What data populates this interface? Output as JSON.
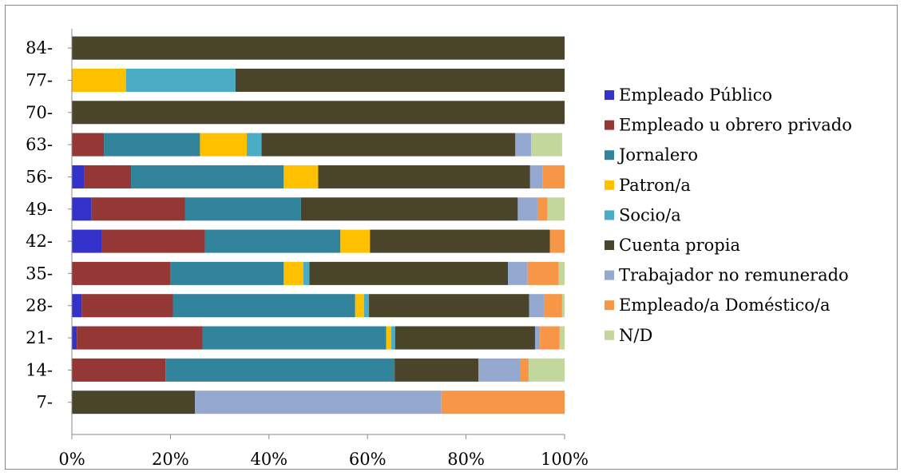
{
  "chart_data": {
    "type": "bar",
    "orientation": "horizontal",
    "stacked": "percent",
    "title": "",
    "xlabel": "",
    "ylabel": "",
    "xlim": [
      0,
      100
    ],
    "grid": false,
    "legend_position": "right",
    "x_ticks": [
      "0%",
      "20%",
      "40%",
      "60%",
      "80%",
      "100%"
    ],
    "categories": [
      "84-",
      "77-",
      "70-",
      "63-",
      "56-",
      "49-",
      "42-",
      "35-",
      "28-",
      "21-",
      "14-",
      "7-"
    ],
    "series": [
      {
        "name": "Empleado Público",
        "color": "#3333CC",
        "values": [
          0,
          0,
          0,
          0,
          2.5,
          4,
          6,
          0,
          2,
          1,
          0,
          0
        ]
      },
      {
        "name": "Empleado u obrero privado",
        "color": "#953735",
        "values": [
          0,
          0,
          0,
          6.5,
          9.5,
          19,
          21,
          20,
          18.5,
          25.5,
          19,
          0
        ]
      },
      {
        "name": "Jornalero",
        "color": "#31849B",
        "values": [
          0,
          0,
          0,
          19.5,
          31,
          23.5,
          27.5,
          23,
          37,
          37.3,
          46.5,
          0
        ]
      },
      {
        "name": "Patron/a",
        "color": "#FFC000",
        "values": [
          0,
          11,
          0,
          9.5,
          7,
          0,
          6,
          4,
          1.8,
          1,
          0,
          0
        ]
      },
      {
        "name": "Socio/a",
        "color": "#4BACC6",
        "values": [
          0,
          22.2,
          0,
          3,
          0,
          0,
          0,
          1.2,
          1,
          0.8,
          0,
          0
        ]
      },
      {
        "name": "Cuenta propia",
        "color": "#4A452A",
        "values": [
          100,
          66.8,
          100,
          51.5,
          43,
          44,
          36.5,
          40.3,
          32.5,
          28.4,
          17,
          25
        ]
      },
      {
        "name": "Trabajador no remunerado",
        "color": "#95A9D0",
        "values": [
          0,
          0,
          0,
          3.2,
          2.5,
          4,
          0,
          4,
          3,
          1,
          8.5,
          50
        ]
      },
      {
        "name": "Empleado/a Doméstico/a",
        "color": "#F79646",
        "values": [
          0,
          0,
          0,
          0,
          4.5,
          2,
          3,
          6.3,
          3.7,
          4,
          1.7,
          25
        ]
      },
      {
        "name": "N/D",
        "color": "#C3D69B",
        "values": [
          0,
          0,
          0,
          6.3,
          0,
          3.5,
          0,
          1.2,
          0.5,
          1,
          7.3,
          0
        ]
      }
    ]
  }
}
